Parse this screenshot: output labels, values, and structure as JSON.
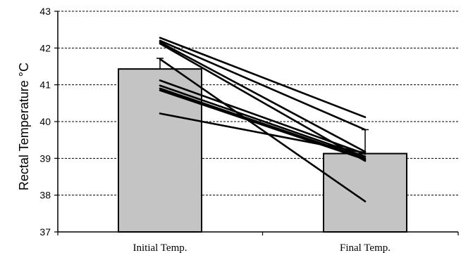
{
  "chart_data": {
    "type": "bar",
    "title": "",
    "xlabel": "",
    "ylabel": "Rectal Temperature °C",
    "ylim": [
      37,
      43
    ],
    "yticks": [
      37,
      38,
      39,
      40,
      41,
      42,
      43
    ],
    "grid": true,
    "categories": [
      "Initial Temp.",
      "Final Temp."
    ],
    "values": [
      41.43,
      39.13
    ],
    "error_bars": [
      {
        "low": 41.43,
        "high": 41.72
      },
      {
        "low": 39.13,
        "high": 39.78
      }
    ],
    "individual_lines": [
      [
        42.28,
        40.12
      ],
      [
        42.2,
        39.78
      ],
      [
        42.16,
        39.18
      ],
      [
        42.12,
        38.93
      ],
      [
        41.7,
        37.83
      ],
      [
        41.12,
        39.12
      ],
      [
        40.98,
        39.05
      ],
      [
        40.9,
        39.0
      ],
      [
        40.85,
        38.97
      ],
      [
        40.22,
        39.15
      ]
    ],
    "colors": {
      "bar_fill": "#c4c4c4",
      "bar_stroke": "#000000",
      "line": "#000000",
      "grid": "#000000"
    }
  }
}
